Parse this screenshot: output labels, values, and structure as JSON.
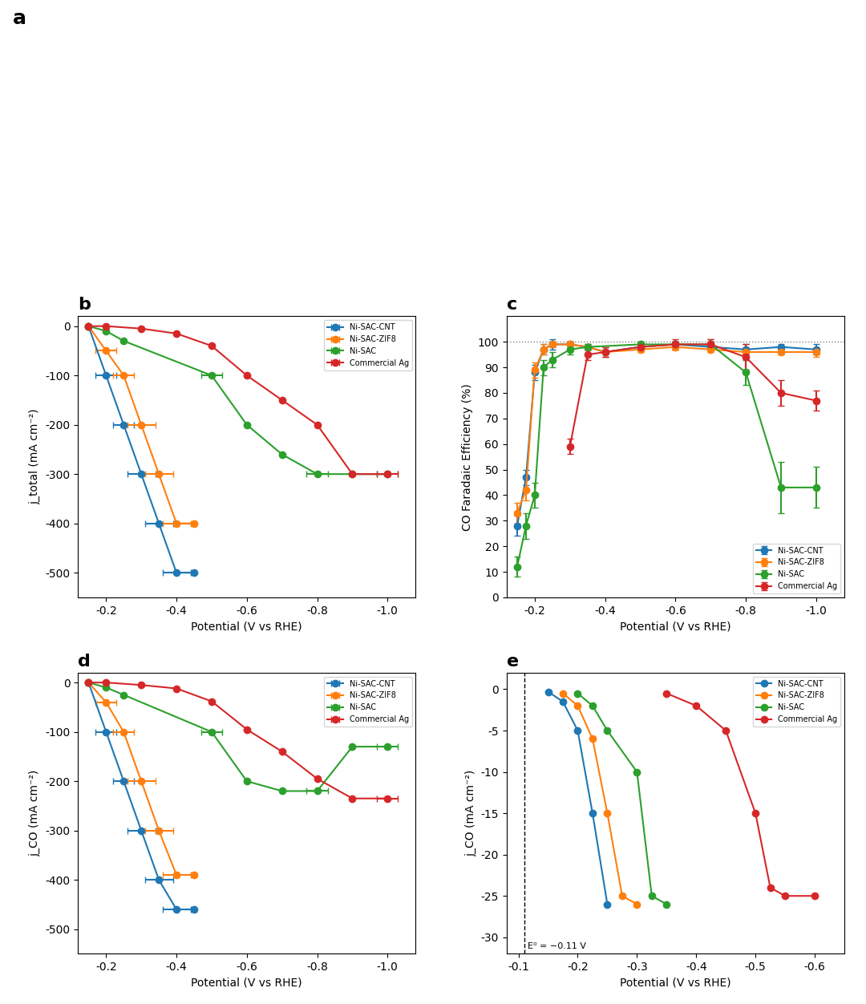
{
  "chart_data": [
    {
      "type": "blank",
      "title": "a"
    },
    {
      "type": "line",
      "title": "b",
      "xlabel": "Potential (V vs RHE)",
      "ylabel": "j_total (mA cm⁻²)",
      "xlim": [
        -0.12,
        -1.08
      ],
      "ylim": [
        -550,
        20
      ],
      "xticks": [
        -0.2,
        -0.4,
        -0.6,
        -0.8,
        -1.0
      ],
      "yticks": [
        0,
        -100,
        -200,
        -300,
        -400,
        -500
      ],
      "legend": "upper right",
      "marker": "o",
      "series": [
        {
          "name": "Ni-SAC-CNT",
          "x": [
            -0.15,
            -0.2,
            -0.25,
            -0.3,
            -0.35,
            -0.4,
            -0.45
          ],
          "values": [
            0,
            -100,
            -200,
            -300,
            -400,
            -500,
            -500
          ],
          "xerr": [
            0,
            0.03,
            0.03,
            0.04,
            0.04,
            0.04,
            0
          ]
        },
        {
          "name": "Ni-SAC-ZIF8",
          "x": [
            -0.15,
            -0.2,
            -0.25,
            -0.3,
            -0.35,
            -0.4,
            -0.45
          ],
          "values": [
            0,
            -50,
            -100,
            -200,
            -300,
            -400,
            -400
          ],
          "xerr": [
            0,
            0.03,
            0.03,
            0.04,
            0.04,
            0.04,
            0
          ]
        },
        {
          "name": "Ni-SAC",
          "x": [
            -0.15,
            -0.2,
            -0.25,
            -0.5,
            -0.6,
            -0.7,
            -0.8,
            -0.9,
            -1.0
          ],
          "values": [
            0,
            -10,
            -30,
            -100,
            -200,
            -260,
            -300,
            -300,
            -300
          ],
          "xerr": [
            0,
            0,
            0,
            0.03,
            0,
            0,
            0.03,
            0,
            0.03
          ]
        },
        {
          "name": "Commercial Ag",
          "x": [
            -0.15,
            -0.2,
            -0.3,
            -0.4,
            -0.5,
            -0.6,
            -0.7,
            -0.8,
            -0.9,
            -1.0
          ],
          "values": [
            0,
            0,
            -5,
            -15,
            -40,
            -100,
            -150,
            -200,
            -300,
            -300
          ],
          "xerr": [
            0,
            0,
            0,
            0,
            0,
            0,
            0,
            0,
            0,
            0.03
          ]
        }
      ]
    },
    {
      "type": "line",
      "title": "c",
      "xlabel": "Potential (V vs RHE)",
      "ylabel": "CO Faradaic Efficiency (%)",
      "xlim": [
        -0.12,
        -1.08
      ],
      "ylim": [
        0,
        110
      ],
      "xticks": [
        -0.2,
        -0.4,
        -0.6,
        -0.8,
        -1.0
      ],
      "yticks": [
        0,
        10,
        20,
        30,
        40,
        50,
        60,
        70,
        80,
        90,
        100
      ],
      "legend": "lower right",
      "marker": "o",
      "hline": 100,
      "series": [
        {
          "name": "Ni-SAC-CNT",
          "x": [
            -0.15,
            -0.175,
            -0.2,
            -0.225,
            -0.25,
            -0.3,
            -0.35,
            -0.4,
            -0.5,
            -0.6,
            -0.7,
            -0.8,
            -0.9,
            -1.0
          ],
          "values": [
            28,
            47,
            88,
            97,
            99,
            99,
            98,
            96,
            98,
            99,
            98,
            97,
            98,
            97
          ],
          "yerr": [
            4,
            3,
            3,
            2,
            2,
            1,
            1,
            2,
            1,
            1,
            1,
            2,
            1,
            2
          ]
        },
        {
          "name": "Ni-SAC-ZIF8",
          "x": [
            -0.15,
            -0.175,
            -0.2,
            -0.225,
            -0.25,
            -0.3,
            -0.35,
            -0.4,
            -0.5,
            -0.6,
            -0.7,
            -0.8,
            -0.9,
            -1.0
          ],
          "values": [
            33,
            42,
            89,
            97,
            99,
            99,
            98,
            96,
            97,
            98,
            97,
            96,
            96,
            96
          ],
          "yerr": [
            4,
            4,
            3,
            2,
            1,
            1,
            1,
            2,
            1,
            1,
            1,
            2,
            1,
            2
          ]
        },
        {
          "name": "Ni-SAC",
          "x": [
            -0.15,
            -0.175,
            -0.2,
            -0.225,
            -0.25,
            -0.3,
            -0.35,
            -0.5,
            -0.6,
            -0.7,
            -0.8,
            -0.9,
            -1.0
          ],
          "values": [
            12,
            28,
            40,
            90,
            93,
            97,
            98,
            99,
            99,
            99,
            88,
            43,
            43
          ],
          "yerr": [
            4,
            5,
            5,
            3,
            3,
            2,
            1,
            1,
            1,
            2,
            5,
            10,
            8
          ]
        },
        {
          "name": "Commercial Ag",
          "x": [
            -0.3,
            -0.35,
            -0.4,
            -0.5,
            -0.6,
            -0.7,
            -0.8,
            -0.9,
            -1.0
          ],
          "values": [
            59,
            95,
            96,
            98,
            99,
            99,
            94,
            80,
            77
          ],
          "yerr": [
            3,
            2,
            2,
            1,
            2,
            2,
            5,
            5,
            4
          ]
        }
      ]
    },
    {
      "type": "line",
      "title": "d",
      "xlabel": "Potential (V vs RHE)",
      "ylabel": "j_CO (mA cm⁻²)",
      "xlim": [
        -0.12,
        -1.08
      ],
      "ylim": [
        -550,
        20
      ],
      "xticks": [
        -0.2,
        -0.4,
        -0.6,
        -0.8,
        -1.0
      ],
      "yticks": [
        0,
        -100,
        -200,
        -300,
        -400,
        -500
      ],
      "legend": "upper right",
      "marker": "o",
      "series": [
        {
          "name": "Ni-SAC-CNT",
          "x": [
            -0.15,
            -0.2,
            -0.25,
            -0.3,
            -0.35,
            -0.4,
            -0.45
          ],
          "values": [
            0,
            -100,
            -200,
            -300,
            -400,
            -460,
            -460
          ],
          "xerr": [
            0,
            0.03,
            0.03,
            0.04,
            0.04,
            0.04,
            0
          ]
        },
        {
          "name": "Ni-SAC-ZIF8",
          "x": [
            -0.15,
            -0.2,
            -0.25,
            -0.3,
            -0.35,
            -0.4,
            -0.45
          ],
          "values": [
            0,
            -40,
            -100,
            -200,
            -300,
            -390,
            -390
          ],
          "xerr": [
            0,
            0.03,
            0.03,
            0.04,
            0.04,
            0.04,
            0
          ]
        },
        {
          "name": "Ni-SAC",
          "x": [
            -0.15,
            -0.2,
            -0.25,
            -0.5,
            -0.6,
            -0.7,
            -0.8,
            -0.9,
            -1.0
          ],
          "values": [
            0,
            -10,
            -25,
            -100,
            -200,
            -220,
            -220,
            -130,
            -130
          ],
          "xerr": [
            0,
            0,
            0,
            0.03,
            0,
            0,
            0.03,
            0,
            0.03
          ]
        },
        {
          "name": "Commercial Ag",
          "x": [
            -0.15,
            -0.2,
            -0.3,
            -0.4,
            -0.5,
            -0.6,
            -0.7,
            -0.8,
            -0.9,
            -1.0
          ],
          "values": [
            0,
            0,
            -5,
            -12,
            -38,
            -95,
            -140,
            -195,
            -235,
            -235
          ],
          "xerr": [
            0,
            0,
            0,
            0,
            0,
            0,
            0,
            0,
            0,
            0.03
          ]
        }
      ]
    },
    {
      "type": "line",
      "title": "e",
      "xlabel": "Potential (V vs RHE)",
      "ylabel": "j_CO (mA cm⁻²)",
      "xlim": [
        -0.08,
        -0.65
      ],
      "ylim": [
        -32,
        2
      ],
      "xticks": [
        -0.1,
        -0.2,
        -0.3,
        -0.4,
        -0.5,
        -0.6
      ],
      "yticks": [
        0,
        -5,
        -10,
        -15,
        -20,
        -25,
        -30
      ],
      "legend": "upper right",
      "marker": "o",
      "vline": -0.11,
      "annotations": [
        "E⁰ = −0.11 V"
      ],
      "series": [
        {
          "name": "Ni-SAC-CNT",
          "x": [
            -0.15,
            -0.175,
            -0.2,
            -0.225,
            -0.25
          ],
          "values": [
            -0.3,
            -1.5,
            -5,
            -15,
            -26
          ]
        },
        {
          "name": "Ni-SAC-ZIF8",
          "x": [
            -0.175,
            -0.2,
            -0.225,
            -0.25,
            -0.275,
            -0.3
          ],
          "values": [
            -0.5,
            -2,
            -6,
            -15,
            -25,
            -26
          ]
        },
        {
          "name": "Ni-SAC",
          "x": [
            -0.2,
            -0.225,
            -0.25,
            -0.3,
            -0.325,
            -0.35
          ],
          "values": [
            -0.5,
            -2,
            -5,
            -10,
            -25,
            -26
          ]
        },
        {
          "name": "Commercial Ag",
          "x": [
            -0.35,
            -0.4,
            -0.45,
            -0.5,
            -0.525,
            -0.55,
            -0.6
          ],
          "values": [
            -0.5,
            -2,
            -5,
            -15,
            -24,
            -25,
            -25
          ]
        }
      ]
    }
  ]
}
